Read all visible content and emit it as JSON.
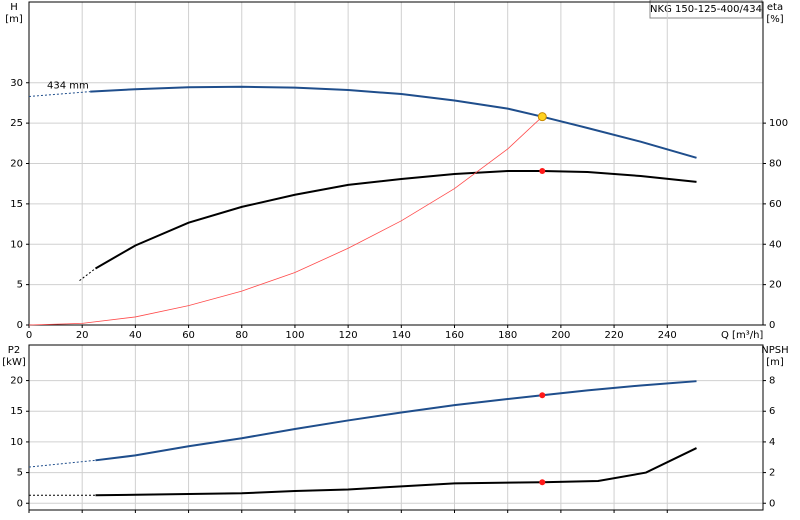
{
  "chart_data": [
    {
      "type": "line",
      "title": "NKG 150-125-400/434",
      "annotation": "434 mm",
      "x_label": "Q [m³/h]",
      "y_label": [
        "H",
        "[m]"
      ],
      "y2_label": [
        "eta",
        "[%]"
      ],
      "xlim": [
        0,
        276
      ],
      "xticks": [
        0,
        20,
        40,
        60,
        80,
        100,
        120,
        140,
        160,
        180,
        200,
        220,
        240
      ],
      "show_xtick_labels": true,
      "ylim": [
        0,
        40
      ],
      "yticks": [
        0,
        5,
        10,
        15,
        20,
        25,
        30
      ],
      "y2lim": [
        0,
        160
      ],
      "y2ticks": [
        0,
        20,
        40,
        60,
        80,
        100
      ],
      "grid": true,
      "series": [
        {
          "color": "#1f4e8c",
          "dashed": true,
          "axis": "y",
          "x": [
            0,
            23
          ],
          "values": [
            28.3,
            28.9
          ]
        },
        {
          "color": "#1f4e8c",
          "dashed": false,
          "axis": "y",
          "x": [
            23,
            40,
            60,
            80,
            100,
            120,
            140,
            160,
            180,
            193,
            210,
            230,
            251
          ],
          "values": [
            28.9,
            29.2,
            29.45,
            29.5,
            29.4,
            29.1,
            28.6,
            27.8,
            26.8,
            25.8,
            24.4,
            22.7,
            20.7
          ]
        },
        {
          "color": "#000000",
          "dashed": true,
          "axis": "y2",
          "x": [
            19,
            25
          ],
          "values": [
            22,
            28
          ]
        },
        {
          "color": "#000000",
          "dashed": false,
          "axis": "y2",
          "x": [
            25,
            40,
            60,
            80,
            100,
            120,
            140,
            160,
            180,
            193,
            210,
            230,
            251
          ],
          "values": [
            28,
            39.4,
            50.7,
            58.5,
            64.5,
            69.4,
            72.3,
            74.8,
            76.3,
            76.3,
            75.8,
            73.8,
            70.9
          ]
        },
        {
          "color": "#ff4a4a",
          "dashed": false,
          "axis": "y",
          "thin": true,
          "x": [
            0,
            20,
            40,
            60,
            80,
            100,
            120,
            140,
            160,
            180,
            193
          ],
          "values": [
            0,
            0.2,
            1.0,
            2.4,
            4.2,
            6.5,
            9.5,
            12.9,
            16.9,
            21.8,
            25.8
          ]
        }
      ],
      "points": [
        {
          "x": 193,
          "value": 25.8,
          "axis": "y",
          "color": "#ffd21f"
        },
        {
          "x": 193,
          "value": 76.3,
          "axis": "y2",
          "color": "#ff1a1a"
        }
      ]
    },
    {
      "type": "line",
      "y_label": [
        "P2",
        "[kW]"
      ],
      "y2_label": [
        "NPSH",
        "[m]"
      ],
      "xlim": [
        0,
        276
      ],
      "xticks": [
        0,
        20,
        40,
        60,
        80,
        100,
        120,
        140,
        160,
        180,
        200,
        220,
        240
      ],
      "show_xtick_labels": false,
      "ylim": [
        -1.1,
        25.8
      ],
      "yticks": [
        0,
        5,
        10,
        15,
        20
      ],
      "y2lim": [
        -0.44,
        10.32
      ],
      "y2ticks": [
        0,
        2,
        4,
        6,
        8
      ],
      "grid": true,
      "series": [
        {
          "color": "#1f4e8c",
          "dashed": true,
          "axis": "y",
          "x": [
            0,
            25
          ],
          "values": [
            5.9,
            7.0
          ]
        },
        {
          "color": "#1f4e8c",
          "dashed": false,
          "axis": "y",
          "x": [
            25,
            40,
            60,
            80,
            100,
            120,
            140,
            160,
            180,
            193,
            210,
            230,
            251
          ],
          "values": [
            7.0,
            7.8,
            9.3,
            10.6,
            12.1,
            13.5,
            14.8,
            16.0,
            17.0,
            17.6,
            18.4,
            19.2,
            19.9
          ]
        },
        {
          "color": "#000000",
          "dashed": true,
          "axis": "y2",
          "x": [
            0,
            25
          ],
          "values": [
            0.52,
            0.52
          ]
        },
        {
          "color": "#000000",
          "dashed": false,
          "axis": "y2",
          "x": [
            25,
            60,
            80,
            100,
            120,
            140,
            160,
            193,
            214,
            232,
            251
          ],
          "values": [
            0.52,
            0.6,
            0.65,
            0.8,
            0.9,
            1.1,
            1.3,
            1.37,
            1.45,
            2.0,
            3.6
          ]
        }
      ],
      "points": [
        {
          "x": 193,
          "value": 17.6,
          "axis": "y",
          "color": "#ff1a1a"
        },
        {
          "x": 193,
          "value": 1.37,
          "axis": "y2",
          "color": "#ff1a1a"
        }
      ]
    }
  ]
}
